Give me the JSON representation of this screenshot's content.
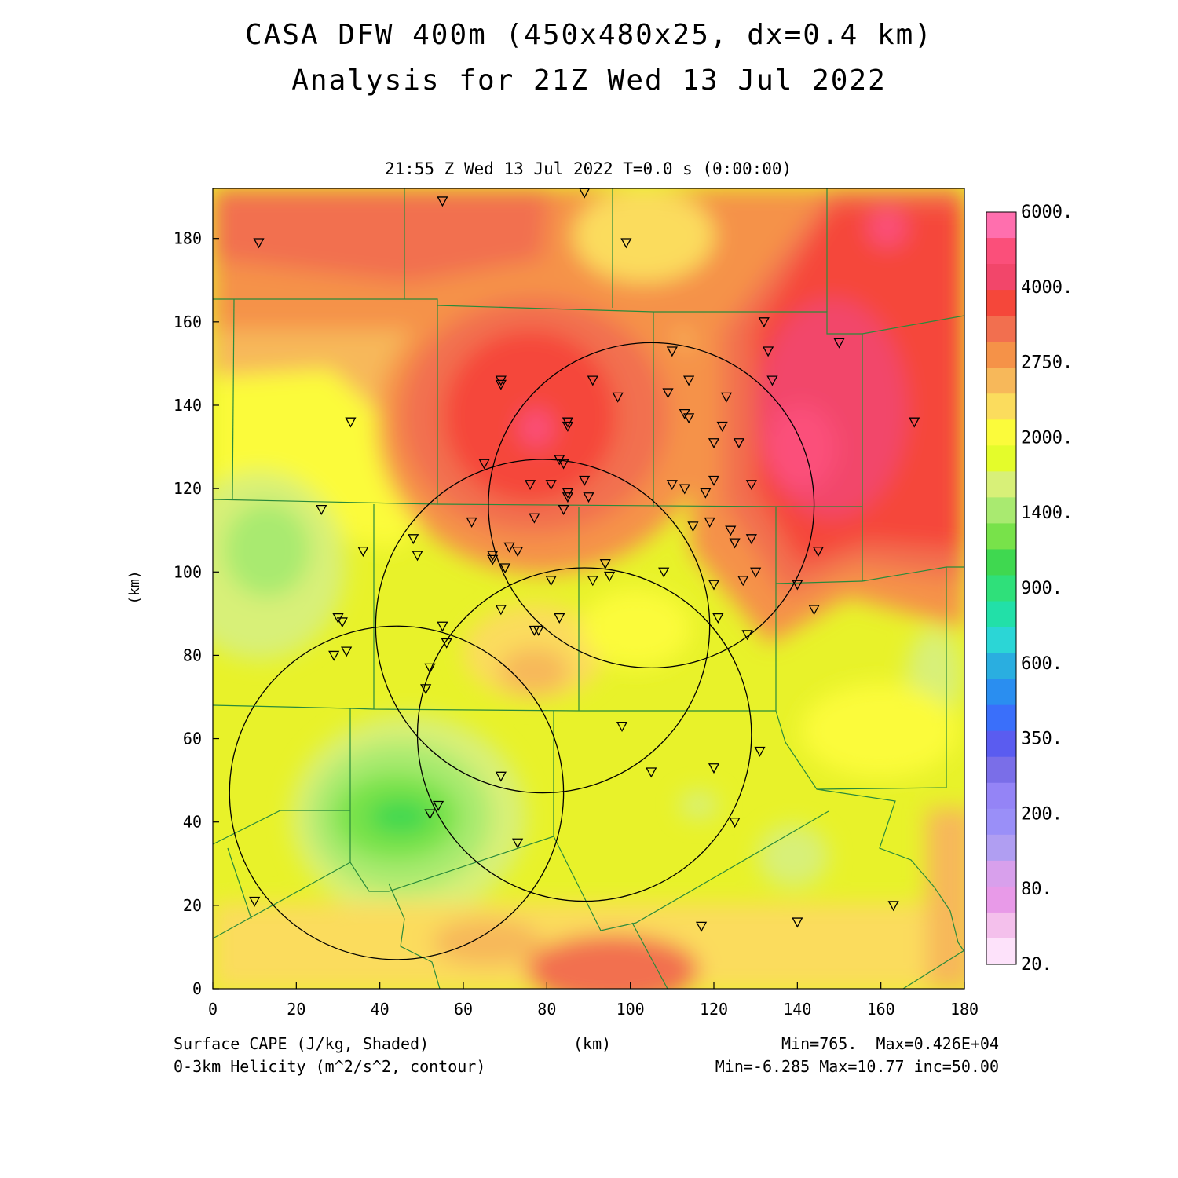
{
  "title_line1": "CASA DFW 400m (450x480x25, dx=0.4 km)",
  "title_line2": "Analysis for 21Z Wed 13 Jul 2022",
  "subtitle": "21:55 Z Wed 13 Jul 2022   T=0.0 s (0:00:00)",
  "x_axis": {
    "label": "(km)",
    "ticks": [
      "0",
      "20",
      "40",
      "60",
      "80",
      "100",
      "120",
      "140",
      "160",
      "180"
    ],
    "range": [
      0,
      180
    ]
  },
  "y_axis": {
    "label": "(km)",
    "ticks": [
      "0",
      "20",
      "40",
      "60",
      "80",
      "100",
      "120",
      "140",
      "160",
      "180"
    ],
    "range": [
      0,
      192
    ]
  },
  "colorbar": {
    "labels": [
      "6000.",
      "4000.",
      "2750.",
      "2000.",
      "1400.",
      "900.",
      "600.",
      "350.",
      "200.",
      "80.",
      "20."
    ],
    "colors": [
      "#ff6fae",
      "#fb4f7a",
      "#f2466a",
      "#f5473a",
      "#f26f4f",
      "#f59248",
      "#f7b85a",
      "#fbdc5d",
      "#fbfb3b",
      "#e4fc2b",
      "#d8f078",
      "#a9ea70",
      "#78e24a",
      "#3fd850",
      "#2fe07a",
      "#22e0a8",
      "#2bd6d6",
      "#2aaee0",
      "#2a8ef0",
      "#3a6ffa",
      "#5a5cf0",
      "#7a6ee8",
      "#9484f6",
      "#9a8ff8",
      "#b09ef2",
      "#d8a0ec",
      "#e89ae8",
      "#f4c0ec",
      "#fde2fa"
    ]
  },
  "footer": {
    "left1": "Surface CAPE (J/kg, Shaded)",
    "left2": "0-3km Helicity (m^2/s^2, contour)",
    "center": "(km)",
    "right1": "Min=765.  Max=0.426E+04",
    "right2": "Min=-6.285 Max=10.77 inc=50.00"
  },
  "colors": {
    "background_field": "#e8f22a",
    "county_lines": "#2a8a3a",
    "range_rings": "#000000"
  },
  "map_data": {
    "radar_range_rings": [
      {
        "center_km": [
          105,
          116
        ],
        "radius_km": 39
      },
      {
        "center_km": [
          79,
          87
        ],
        "radius_km": 40
      },
      {
        "center_km": [
          89,
          61
        ],
        "radius_km": 40
      },
      {
        "center_km": [
          44,
          47
        ],
        "radius_km": 40
      }
    ],
    "station_markers_km": [
      [
        11,
        179
      ],
      [
        55,
        189
      ],
      [
        89,
        191
      ],
      [
        99,
        179
      ],
      [
        33,
        136
      ],
      [
        69,
        146
      ],
      [
        69,
        145
      ],
      [
        91,
        146
      ],
      [
        97,
        142
      ],
      [
        85,
        136
      ],
      [
        85,
        135
      ],
      [
        110,
        153
      ],
      [
        114,
        146
      ],
      [
        123,
        142
      ],
      [
        132,
        160
      ],
      [
        133,
        153
      ],
      [
        134,
        146
      ],
      [
        113,
        138
      ],
      [
        114,
        137
      ],
      [
        109,
        143
      ],
      [
        122,
        135
      ],
      [
        120,
        131
      ],
      [
        126,
        131
      ],
      [
        83,
        127
      ],
      [
        84,
        126
      ],
      [
        65,
        126
      ],
      [
        76,
        121
      ],
      [
        81,
        121
      ],
      [
        89,
        122
      ],
      [
        85,
        119
      ],
      [
        85,
        118
      ],
      [
        90,
        118
      ],
      [
        110,
        121
      ],
      [
        113,
        120
      ],
      [
        118,
        119
      ],
      [
        120,
        122
      ],
      [
        129,
        121
      ],
      [
        168,
        136
      ],
      [
        150,
        155
      ],
      [
        26,
        115
      ],
      [
        62,
        112
      ],
      [
        84,
        115
      ],
      [
        77,
        113
      ],
      [
        115,
        111
      ],
      [
        119,
        112
      ],
      [
        124,
        110
      ],
      [
        125,
        107
      ],
      [
        129,
        108
      ],
      [
        48,
        108
      ],
      [
        49,
        104
      ],
      [
        67,
        104
      ],
      [
        67,
        103
      ],
      [
        70,
        101
      ],
      [
        71,
        106
      ],
      [
        73,
        105
      ],
      [
        36,
        105
      ],
      [
        94,
        102
      ],
      [
        95,
        99
      ],
      [
        91,
        98
      ],
      [
        81,
        98
      ],
      [
        108,
        100
      ],
      [
        120,
        97
      ],
      [
        127,
        98
      ],
      [
        130,
        100
      ],
      [
        140,
        97
      ],
      [
        145,
        105
      ],
      [
        144,
        91
      ],
      [
        69,
        91
      ],
      [
        83,
        89
      ],
      [
        77,
        86
      ],
      [
        78,
        86
      ],
      [
        121,
        89
      ],
      [
        30,
        89
      ],
      [
        31,
        88
      ],
      [
        55,
        87
      ],
      [
        56,
        83
      ],
      [
        29,
        80
      ],
      [
        32,
        81
      ],
      [
        52,
        77
      ],
      [
        51,
        72
      ],
      [
        128,
        85
      ],
      [
        98,
        63
      ],
      [
        131,
        57
      ],
      [
        120,
        53
      ],
      [
        105,
        52
      ],
      [
        69,
        51
      ],
      [
        54,
        44
      ],
      [
        52,
        42
      ],
      [
        125,
        40
      ],
      [
        73,
        35
      ],
      [
        10,
        21
      ],
      [
        117,
        15
      ],
      [
        140,
        16
      ],
      [
        163,
        20
      ]
    ],
    "cape_value_range_jkg": [
      765,
      4260
    ]
  }
}
